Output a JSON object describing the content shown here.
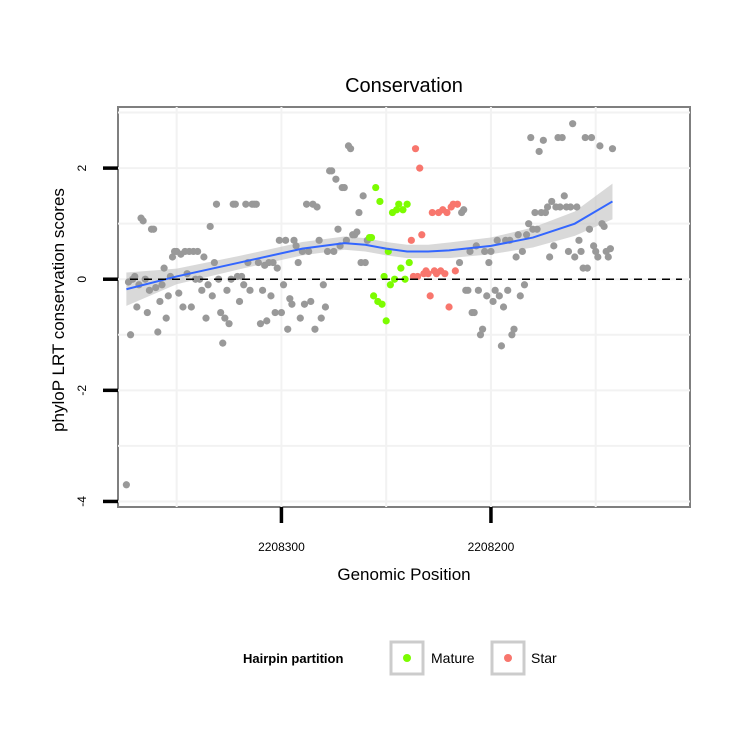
{
  "chart_data": {
    "type": "scatter",
    "title": "Conservation",
    "xlabel": "Genomic Position",
    "ylabel": "phyloP LRT conservation scores",
    "x_reversed": true,
    "xlim": [
      2208378,
      2208105
    ],
    "ylim": [
      -4.1,
      3.1
    ],
    "x_ticks": [
      2208300,
      2208200
    ],
    "x_tick_labels": [
      "2208300",
      "2208200"
    ],
    "y_ticks": [
      2,
      0,
      -2,
      -4
    ],
    "y_tick_labels": [
      "2",
      "0",
      "-2",
      "-4"
    ],
    "grid": true,
    "reference_line": {
      "y": 0,
      "style": "dashed"
    },
    "legend": {
      "title": "Hairpin partition",
      "position": "bottom",
      "entries": [
        {
          "label": "Mature",
          "color": "#7cfc00"
        },
        {
          "label": "Star",
          "color": "#f8766d"
        }
      ]
    },
    "colors": {
      "other": "#999999",
      "Mature": "#7cfc00",
      "Star": "#f8766d",
      "smooth": "#3366ff",
      "band": "#c0c0c0"
    },
    "series": [
      {
        "group": "other",
        "points": [
          [
            2208374,
            -3.7
          ],
          [
            2208373,
            -0.05
          ],
          [
            2208372,
            -1.0
          ],
          [
            2208371,
            0.0
          ],
          [
            2208370,
            0.05
          ],
          [
            2208369,
            -0.5
          ],
          [
            2208368,
            -0.1
          ],
          [
            2208367,
            1.1
          ],
          [
            2208366,
            1.05
          ],
          [
            2208365,
            0.0
          ],
          [
            2208364,
            -0.6
          ],
          [
            2208363,
            -0.2
          ],
          [
            2208362,
            0.9
          ],
          [
            2208361,
            0.9
          ],
          [
            2208360,
            -0.15
          ],
          [
            2208359,
            -0.95
          ],
          [
            2208358,
            -0.4
          ],
          [
            2208357,
            -0.1
          ],
          [
            2208356,
            0.2
          ],
          [
            2208355,
            -0.7
          ],
          [
            2208354,
            -0.3
          ],
          [
            2208353,
            0.05
          ],
          [
            2208352,
            0.4
          ],
          [
            2208351,
            0.5
          ],
          [
            2208350,
            0.5
          ],
          [
            2208349,
            -0.25
          ],
          [
            2208348,
            0.45
          ],
          [
            2208347,
            -0.5
          ],
          [
            2208346,
            0.5
          ],
          [
            2208345,
            0.1
          ],
          [
            2208344,
            0.5
          ],
          [
            2208343,
            -0.5
          ],
          [
            2208342,
            0.5
          ],
          [
            2208341,
            0.0
          ],
          [
            2208340,
            0.5
          ],
          [
            2208339,
            0.0
          ],
          [
            2208338,
            -0.2
          ],
          [
            2208337,
            0.4
          ],
          [
            2208336,
            -0.7
          ],
          [
            2208335,
            -0.1
          ],
          [
            2208334,
            0.95
          ],
          [
            2208333,
            -0.3
          ],
          [
            2208332,
            0.3
          ],
          [
            2208331,
            1.35
          ],
          [
            2208330,
            0.0
          ],
          [
            2208329,
            -0.6
          ],
          [
            2208328,
            -1.15
          ],
          [
            2208327,
            -0.7
          ],
          [
            2208326,
            -0.2
          ],
          [
            2208325,
            -0.8
          ],
          [
            2208324,
            0.0
          ],
          [
            2208323,
            1.35
          ],
          [
            2208322,
            1.35
          ],
          [
            2208321,
            0.05
          ],
          [
            2208320,
            -0.4
          ],
          [
            2208319,
            0.05
          ],
          [
            2208318,
            -0.1
          ],
          [
            2208317,
            1.35
          ],
          [
            2208316,
            0.3
          ],
          [
            2208315,
            -0.2
          ],
          [
            2208314,
            1.35
          ],
          [
            2208313,
            1.35
          ],
          [
            2208312,
            1.35
          ],
          [
            2208311,
            0.3
          ],
          [
            2208310,
            -0.8
          ],
          [
            2208309,
            -0.2
          ],
          [
            2208308,
            0.25
          ],
          [
            2208307,
            -0.75
          ],
          [
            2208306,
            0.3
          ],
          [
            2208305,
            -0.3
          ],
          [
            2208304,
            0.3
          ],
          [
            2208303,
            -0.6
          ],
          [
            2208302,
            0.2
          ],
          [
            2208301,
            0.7
          ],
          [
            2208300,
            -0.6
          ],
          [
            2208299,
            -0.1
          ],
          [
            2208298,
            0.7
          ],
          [
            2208297,
            -0.9
          ],
          [
            2208296,
            -0.35
          ],
          [
            2208295,
            -0.45
          ],
          [
            2208294,
            0.7
          ],
          [
            2208293,
            0.6
          ],
          [
            2208292,
            0.3
          ],
          [
            2208291,
            -0.7
          ],
          [
            2208290,
            0.5
          ],
          [
            2208289,
            -0.45
          ],
          [
            2208288,
            1.35
          ],
          [
            2208287,
            0.5
          ],
          [
            2208286,
            -0.4
          ],
          [
            2208285,
            1.35
          ],
          [
            2208284,
            -0.9
          ],
          [
            2208283,
            1.3
          ],
          [
            2208282,
            0.7
          ],
          [
            2208281,
            -0.7
          ],
          [
            2208280,
            -0.1
          ],
          [
            2208279,
            -0.5
          ],
          [
            2208278,
            0.5
          ],
          [
            2208277,
            1.95
          ],
          [
            2208276,
            1.95
          ],
          [
            2208275,
            0.5
          ],
          [
            2208274,
            1.8
          ],
          [
            2208273,
            0.9
          ],
          [
            2208272,
            0.6
          ],
          [
            2208271,
            1.65
          ],
          [
            2208270,
            1.65
          ],
          [
            2208269,
            0.7
          ],
          [
            2208268,
            2.4
          ],
          [
            2208267,
            2.35
          ],
          [
            2208266,
            0.8
          ],
          [
            2208265,
            0.8
          ],
          [
            2208264,
            0.85
          ],
          [
            2208263,
            1.2
          ],
          [
            2208262,
            0.3
          ],
          [
            2208261,
            1.5
          ],
          [
            2208260,
            0.3
          ],
          [
            2208259,
            0.7
          ],
          [
            2208215,
            0.3
          ],
          [
            2208214,
            1.2
          ],
          [
            2208213,
            1.25
          ],
          [
            2208212,
            -0.2
          ],
          [
            2208211,
            -0.2
          ],
          [
            2208210,
            0.5
          ],
          [
            2208209,
            -0.6
          ],
          [
            2208208,
            -0.6
          ],
          [
            2208207,
            0.6
          ],
          [
            2208206,
            -0.2
          ],
          [
            2208205,
            -1.0
          ],
          [
            2208204,
            -0.9
          ],
          [
            2208203,
            0.5
          ],
          [
            2208202,
            -0.3
          ],
          [
            2208201,
            0.3
          ],
          [
            2208200,
            0.5
          ],
          [
            2208199,
            -0.4
          ],
          [
            2208198,
            -0.2
          ],
          [
            2208197,
            0.7
          ],
          [
            2208196,
            -0.3
          ],
          [
            2208195,
            -1.2
          ],
          [
            2208194,
            -0.5
          ],
          [
            2208193,
            0.7
          ],
          [
            2208192,
            -0.2
          ],
          [
            2208191,
            0.7
          ],
          [
            2208190,
            -1.0
          ],
          [
            2208189,
            -0.9
          ],
          [
            2208188,
            0.4
          ],
          [
            2208187,
            0.8
          ],
          [
            2208186,
            -0.3
          ],
          [
            2208185,
            0.5
          ],
          [
            2208184,
            -0.1
          ],
          [
            2208183,
            0.8
          ],
          [
            2208182,
            1.0
          ],
          [
            2208181,
            2.55
          ],
          [
            2208180,
            0.9
          ],
          [
            2208179,
            1.2
          ],
          [
            2208178,
            0.9
          ],
          [
            2208177,
            2.3
          ],
          [
            2208176,
            1.2
          ],
          [
            2208175,
            2.5
          ],
          [
            2208174,
            1.2
          ],
          [
            2208173,
            1.3
          ],
          [
            2208172,
            0.4
          ],
          [
            2208171,
            1.4
          ],
          [
            2208170,
            0.6
          ],
          [
            2208169,
            1.3
          ],
          [
            2208168,
            2.55
          ],
          [
            2208167,
            1.3
          ],
          [
            2208166,
            2.55
          ],
          [
            2208165,
            1.5
          ],
          [
            2208164,
            1.3
          ],
          [
            2208163,
            0.5
          ],
          [
            2208162,
            1.3
          ],
          [
            2208161,
            2.8
          ],
          [
            2208160,
            0.4
          ],
          [
            2208159,
            1.3
          ],
          [
            2208158,
            0.7
          ],
          [
            2208157,
            0.5
          ],
          [
            2208156,
            0.2
          ],
          [
            2208155,
            2.55
          ],
          [
            2208154,
            0.2
          ],
          [
            2208153,
            0.9
          ],
          [
            2208152,
            2.55
          ],
          [
            2208151,
            0.6
          ],
          [
            2208150,
            0.5
          ],
          [
            2208149,
            0.4
          ],
          [
            2208148,
            2.4
          ],
          [
            2208147,
            1.0
          ],
          [
            2208146,
            0.95
          ],
          [
            2208145,
            0.5
          ],
          [
            2208144,
            0.4
          ],
          [
            2208143,
            0.55
          ],
          [
            2208142,
            2.35
          ]
        ]
      },
      {
        "group": "Mature",
        "points": [
          [
            2208258,
            0.75
          ],
          [
            2208257,
            0.75
          ],
          [
            2208256,
            -0.3
          ],
          [
            2208255,
            1.65
          ],
          [
            2208254,
            -0.4
          ],
          [
            2208253,
            1.4
          ],
          [
            2208252,
            -0.45
          ],
          [
            2208251,
            0.05
          ],
          [
            2208250,
            -0.75
          ],
          [
            2208249,
            0.5
          ],
          [
            2208248,
            -0.1
          ],
          [
            2208247,
            1.2
          ],
          [
            2208246,
            0.0
          ],
          [
            2208245,
            1.25
          ],
          [
            2208244,
            1.35
          ],
          [
            2208243,
            0.2
          ],
          [
            2208242,
            1.25
          ],
          [
            2208241,
            0.0
          ],
          [
            2208240,
            1.35
          ],
          [
            2208239,
            0.3
          ]
        ]
      },
      {
        "group": "Star",
        "points": [
          [
            2208238,
            0.7
          ],
          [
            2208237,
            0.05
          ],
          [
            2208236,
            2.35
          ],
          [
            2208235,
            0.05
          ],
          [
            2208234,
            2.0
          ],
          [
            2208233,
            0.8
          ],
          [
            2208232,
            0.1
          ],
          [
            2208231,
            0.15
          ],
          [
            2208230,
            0.1
          ],
          [
            2208229,
            -0.3
          ],
          [
            2208228,
            1.2
          ],
          [
            2208227,
            0.15
          ],
          [
            2208226,
            0.1
          ],
          [
            2208225,
            1.2
          ],
          [
            2208224,
            0.15
          ],
          [
            2208223,
            1.25
          ],
          [
            2208222,
            0.1
          ],
          [
            2208221,
            1.2
          ],
          [
            2208220,
            -0.5
          ],
          [
            2208219,
            1.3
          ],
          [
            2208218,
            1.35
          ],
          [
            2208217,
            0.15
          ],
          [
            2208216,
            1.35
          ]
        ]
      }
    ],
    "smooth": {
      "x": [
        2208374,
        2208350,
        2208320,
        2208290,
        2208270,
        2208260,
        2208250,
        2208240,
        2208230,
        2208220,
        2208200,
        2208180,
        2208160,
        2208142
      ],
      "y": [
        -0.18,
        0.05,
        0.3,
        0.55,
        0.65,
        0.62,
        0.55,
        0.5,
        0.5,
        0.52,
        0.6,
        0.75,
        1.0,
        1.4
      ],
      "band": [
        0.3,
        0.14,
        0.12,
        0.12,
        0.12,
        0.12,
        0.12,
        0.12,
        0.12,
        0.14,
        0.15,
        0.18,
        0.22,
        0.32
      ]
    }
  }
}
